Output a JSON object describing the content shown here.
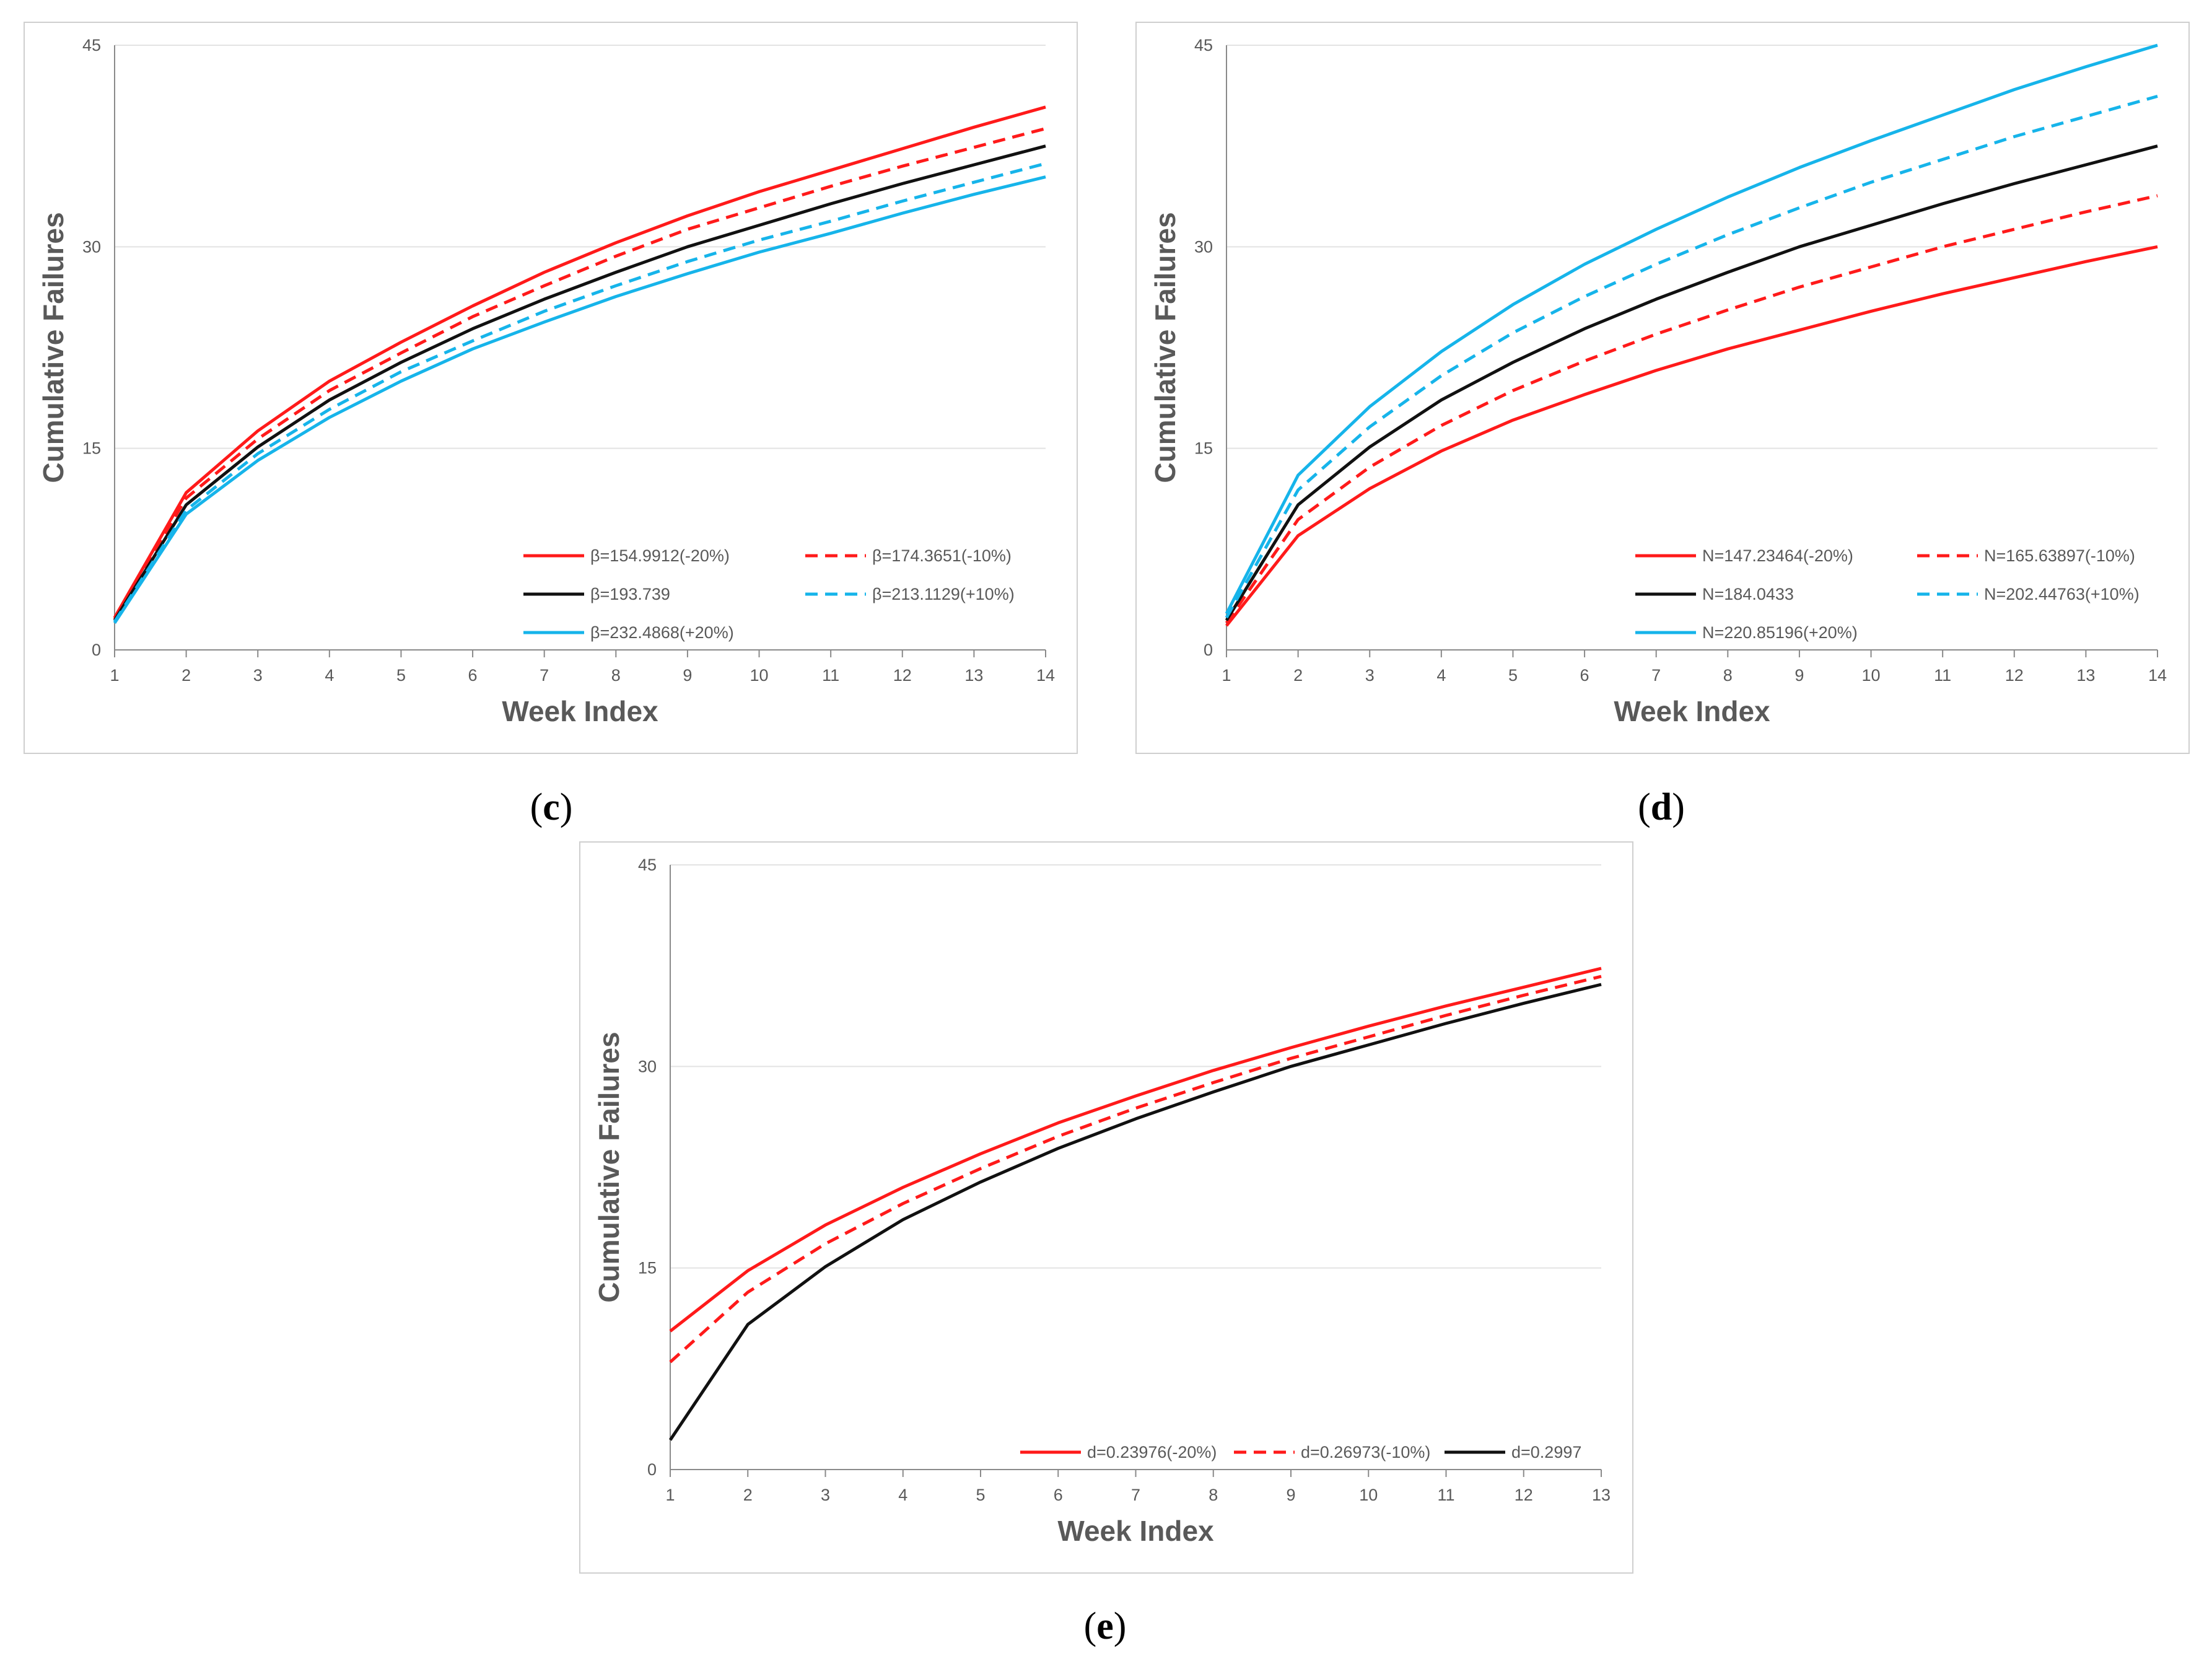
{
  "colors": {
    "red": "#ff1a1a",
    "black": "#111111",
    "blue": "#16b4ea",
    "grid": "#e3e3e3",
    "axis": "#8a8a8a",
    "text": "#595959"
  },
  "chart_data": [
    {
      "type": "line",
      "panel": "c",
      "caption": "c",
      "xlabel": "Week Index",
      "ylabel": "Cumulative Failures",
      "x": [
        1,
        2,
        3,
        4,
        5,
        6,
        7,
        8,
        9,
        10,
        11,
        12,
        13,
        14
      ],
      "xlim": [
        1,
        14
      ],
      "ylim": [
        0,
        45
      ],
      "yticks": [
        0,
        15,
        30,
        45
      ],
      "grid": true,
      "legend_position": "bottom-right",
      "series": [
        {
          "name": "β=154.9912(-20%)",
          "color": "#ff1a1a",
          "dash": "solid",
          "values": [
            2.4,
            11.7,
            16.3,
            20.0,
            22.9,
            25.6,
            28.1,
            30.3,
            32.3,
            34.1,
            35.7,
            37.3,
            38.9,
            40.4
          ]
        },
        {
          "name": "β=174.3651(-10%)",
          "color": "#ff1a1a",
          "dash": "dashed",
          "values": [
            2.3,
            11.3,
            15.7,
            19.3,
            22.1,
            24.8,
            27.1,
            29.3,
            31.3,
            32.9,
            34.5,
            36.0,
            37.4,
            38.8
          ]
        },
        {
          "name": "β=193.739",
          "color": "#111111",
          "dash": "solid",
          "values": [
            2.2,
            10.8,
            15.1,
            18.6,
            21.4,
            23.9,
            26.1,
            28.1,
            30.0,
            31.6,
            33.2,
            34.7,
            36.1,
            37.5
          ]
        },
        {
          "name": "β=213.1129(+10%)",
          "color": "#16b4ea",
          "dash": "dashed",
          "values": [
            2.1,
            10.4,
            14.6,
            17.9,
            20.7,
            23.0,
            25.2,
            27.1,
            28.9,
            30.5,
            31.9,
            33.4,
            34.8,
            36.2
          ]
        },
        {
          "name": "β=232.4868(+20%)",
          "color": "#16b4ea",
          "dash": "solid",
          "values": [
            2.0,
            10.1,
            14.1,
            17.3,
            20.0,
            22.4,
            24.4,
            26.3,
            28.0,
            29.6,
            31.0,
            32.5,
            33.9,
            35.2
          ]
        }
      ]
    },
    {
      "type": "line",
      "panel": "d",
      "caption": "d",
      "xlabel": "Week Index",
      "ylabel": "Cumulative Failures",
      "x": [
        1,
        2,
        3,
        4,
        5,
        6,
        7,
        8,
        9,
        10,
        11,
        12,
        13,
        14
      ],
      "xlim": [
        1,
        14
      ],
      "ylim": [
        0,
        45
      ],
      "yticks": [
        0,
        15,
        30,
        45
      ],
      "grid": true,
      "legend_position": "bottom-right",
      "series": [
        {
          "name": "N=147.23464(-20%)",
          "color": "#ff1a1a",
          "dash": "solid",
          "values": [
            1.8,
            8.5,
            12.0,
            14.8,
            17.1,
            19.0,
            20.8,
            22.4,
            23.8,
            25.2,
            26.5,
            27.7,
            28.9,
            30.0
          ]
        },
        {
          "name": "N=165.63897(-10%)",
          "color": "#ff1a1a",
          "dash": "dashed",
          "values": [
            2.0,
            9.7,
            13.6,
            16.7,
            19.3,
            21.5,
            23.5,
            25.3,
            27.0,
            28.5,
            30.0,
            31.3,
            32.6,
            33.8
          ]
        },
        {
          "name": "N=184.0433",
          "color": "#111111",
          "dash": "solid",
          "values": [
            2.2,
            10.8,
            15.1,
            18.6,
            21.4,
            23.9,
            26.1,
            28.1,
            30.0,
            31.6,
            33.2,
            34.7,
            36.1,
            37.5
          ]
        },
        {
          "name": "N=202.44763(+10%)",
          "color": "#16b4ea",
          "dash": "dashed",
          "values": [
            2.4,
            11.9,
            16.6,
            20.4,
            23.6,
            26.3,
            28.7,
            30.9,
            32.9,
            34.8,
            36.5,
            38.2,
            39.7,
            41.2
          ]
        },
        {
          "name": "N=220.85196(+20%)",
          "color": "#16b4ea",
          "dash": "solid",
          "values": [
            2.7,
            13.0,
            18.1,
            22.2,
            25.7,
            28.7,
            31.3,
            33.7,
            35.9,
            37.9,
            39.8,
            41.7,
            43.4,
            45.0
          ]
        }
      ]
    },
    {
      "type": "line",
      "panel": "e",
      "caption": "e",
      "xlabel": "Week Index",
      "ylabel": "Cumulative Failures",
      "x": [
        1,
        2,
        3,
        4,
        5,
        6,
        7,
        8,
        9,
        10,
        11,
        12,
        13
      ],
      "xlim": [
        1,
        13
      ],
      "ylim": [
        0,
        45
      ],
      "yticks": [
        0,
        15,
        30,
        45
      ],
      "grid": true,
      "legend_position": "bottom-right",
      "series": [
        {
          "name": "d=0.23976(-20%)",
          "color": "#ff1a1a",
          "dash": "solid",
          "values": [
            10.3,
            14.8,
            18.2,
            21.0,
            23.5,
            25.8,
            27.8,
            29.7,
            31.4,
            33.0,
            34.5,
            35.9,
            37.3
          ]
        },
        {
          "name": "d=0.26973(-10%)",
          "color": "#ff1a1a",
          "dash": "dashed",
          "values": [
            8.0,
            13.2,
            16.8,
            19.8,
            22.4,
            24.8,
            26.9,
            28.8,
            30.6,
            32.2,
            33.8,
            35.3,
            36.7
          ]
        },
        {
          "name": "d=0.2997",
          "color": "#111111",
          "dash": "solid",
          "values": [
            2.2,
            10.8,
            15.1,
            18.6,
            21.4,
            23.9,
            26.1,
            28.1,
            30.0,
            31.6,
            33.2,
            34.7,
            36.1
          ]
        }
      ]
    }
  ]
}
